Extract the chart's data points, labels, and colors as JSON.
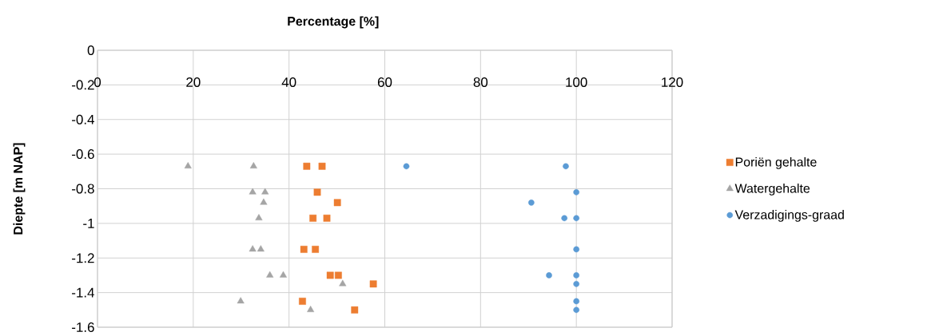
{
  "chart_data": {
    "type": "scatter",
    "xlabel": "Percentage [%]",
    "ylabel": "Diepte [m NAP]",
    "xlim": [
      0,
      120
    ],
    "xticks": [
      0,
      20,
      40,
      60,
      80,
      100,
      120
    ],
    "ylim": [
      -1.6,
      0
    ],
    "yticks": [
      0,
      -0.2,
      -0.4,
      -0.6,
      -0.8,
      -1,
      -1.2,
      -1.4,
      -1.6
    ],
    "grid": true,
    "legend": "right",
    "series": [
      {
        "name": "Poriën gehalte",
        "color": "#ed7d31",
        "marker": "square",
        "x": [
          43.7,
          46.9,
          45.9,
          50.1,
          45.0,
          47.9,
          43.1,
          45.5,
          48.6,
          50.3,
          57.6,
          42.8,
          53.7
        ],
        "values": [
          -0.67,
          -0.67,
          -0.82,
          -0.88,
          -0.97,
          -0.97,
          -1.15,
          -1.15,
          -1.3,
          -1.3,
          -1.35,
          -1.45,
          -1.5
        ]
      },
      {
        "name": "Watergehalte",
        "color": "#a5a5a5",
        "marker": "triangle",
        "x": [
          18.9,
          32.6,
          32.4,
          35.0,
          34.7,
          null,
          33.7,
          32.4,
          34.1,
          36.0,
          38.8,
          51.2,
          29.9,
          44.5
        ],
        "values": [
          -0.67,
          -0.67,
          -0.82,
          -0.82,
          -0.88,
          null,
          -0.97,
          -1.15,
          -1.15,
          -1.3,
          -1.3,
          -1.35,
          -1.45,
          -1.5
        ]
      },
      {
        "name": "Verzadigings-graad",
        "color": "#5b9bd5",
        "marker": "circle",
        "x": [
          64.5,
          97.8,
          100,
          90.6,
          97.5,
          100,
          100,
          94.3,
          100,
          100,
          100,
          100
        ],
        "values": [
          -0.67,
          -0.67,
          -0.82,
          -0.88,
          -0.97,
          -0.97,
          -1.15,
          -1.3,
          -1.3,
          -1.35,
          -1.45,
          -1.5
        ]
      }
    ]
  }
}
